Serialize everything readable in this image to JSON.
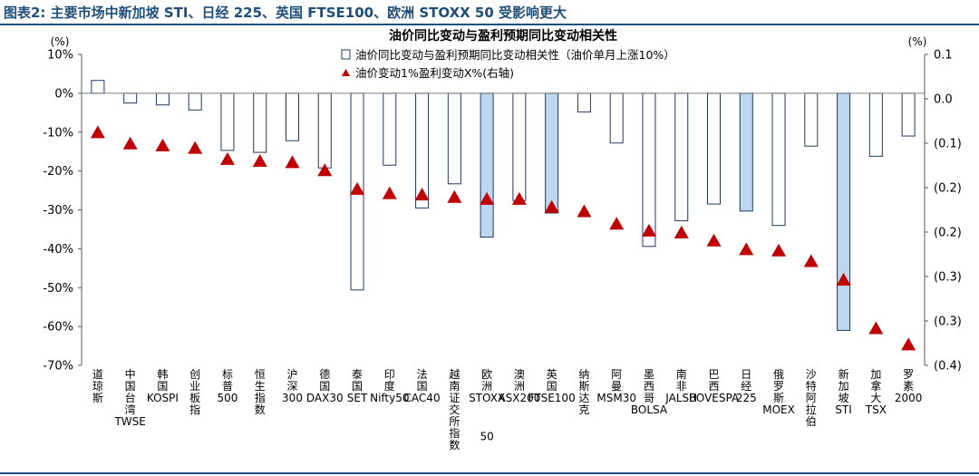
{
  "figure_caption": "图表2:   主要市场中新加坡 STI、日经 225、英国 FTSE100、欧洲 STOXX 50 受影响更大",
  "chart_data": {
    "type": "bar",
    "title": "油价同比变动与盈利预期同比变动相关性",
    "categories": [
      "道琼斯",
      "中国台湾TWSE",
      "韩国KOSPI",
      "创业板指",
      "标普500",
      "恒生指数",
      "沪深300",
      "德国DAX30",
      "泰国SET",
      "印度Nifty50",
      "法国CAC40",
      "越南证交所指数",
      "欧洲STOXX 50",
      "澳洲ASX200",
      "英国FTSE100",
      "纳斯达克",
      "阿曼MSM30",
      "墨西哥BOLSA",
      "南非JALSH",
      "巴西BOVESPA",
      "日经225",
      "俄罗斯MOEX",
      "沙特阿拉伯",
      "新加坡STI",
      "加拿大TSX",
      "罗素2000"
    ],
    "series": [
      {
        "name": "油价同比变动与盈利预期同比变动相关性（油价单月上涨10%）",
        "axis": "left",
        "values": [
          3.3,
          -2.5,
          -3.0,
          -4.3,
          -14.7,
          -15.2,
          -12.2,
          -19.2,
          -50.6,
          -18.5,
          -29.5,
          -23.3,
          -37.0,
          -27.6,
          -30.8,
          -4.8,
          -12.8,
          -39.4,
          -32.8,
          -28.5,
          -30.3,
          -34.0,
          -13.6,
          -61.0,
          -16.2,
          -11.0
        ]
      },
      {
        "name": "油价变动1%盈利变动X%(右轴)",
        "axis": "right",
        "values": [
          -0.026,
          -0.044,
          -0.047,
          -0.051,
          -0.069,
          -0.072,
          -0.074,
          -0.087,
          -0.117,
          -0.124,
          -0.126,
          -0.13,
          -0.133,
          -0.133,
          -0.146,
          -0.153,
          -0.173,
          -0.184,
          -0.187,
          -0.2,
          -0.214,
          -0.216,
          -0.233,
          -0.263,
          -0.341,
          -0.367
        ]
      }
    ],
    "highlighted": [
      "欧洲STOXX 50",
      "英国FTSE100",
      "日经225",
      "新加坡STI"
    ],
    "ylim_left": [
      -70,
      10
    ],
    "ylim_right": [
      -0.4,
      0.1
    ],
    "left_ticks": [
      "10%",
      "0%",
      "-10%",
      "-20%",
      "-30%",
      "-40%",
      "-50%",
      "-60%",
      "-70%"
    ],
    "right_ticks": [
      "0.1",
      "0.0",
      "(0.1)",
      "(0.2)",
      "(0.2)",
      "(0.3)",
      "(0.3)",
      "(0.4)"
    ],
    "left_unit": "(%)",
    "right_unit": "(%)",
    "legend_position": "top-center",
    "colors": {
      "bar_outline": "#1f3864",
      "bar_fill_default": "#ffffff",
      "bar_fill_highlight": "#bdd7ee",
      "marker": "#c00000",
      "text": "#000000",
      "header": "#1f4e79"
    }
  }
}
